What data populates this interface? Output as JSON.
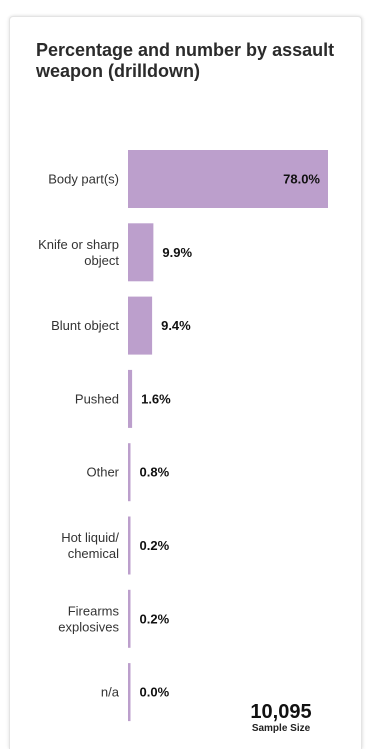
{
  "title": "Percentage and number by assault weapon (drilldown)",
  "colors": {
    "bar": "#bc9fcc",
    "label": "#333333",
    "value": "#111111"
  },
  "sample": {
    "value": "10,095",
    "label": "Sample Size"
  },
  "chart_data": {
    "type": "bar",
    "orientation": "horizontal",
    "title": "Percentage and number by assault weapon (drilldown)",
    "categories": [
      [
        "Body part(s)"
      ],
      [
        "Knife or sharp",
        "object"
      ],
      [
        "Blunt object"
      ],
      [
        "Pushed"
      ],
      [
        "Other"
      ],
      [
        "Hot liquid/",
        "chemical"
      ],
      [
        "Firearms",
        "explosives"
      ],
      [
        "n/a"
      ]
    ],
    "values": [
      78.0,
      9.9,
      9.4,
      1.6,
      0.8,
      0.2,
      0.2,
      0.0
    ],
    "value_labels": [
      "78.0%",
      "9.9%",
      "9.4%",
      "1.6%",
      "0.8%",
      "0.2%",
      "0.2%",
      "0.0%"
    ],
    "xlim": [
      0,
      78.0
    ],
    "grid": false,
    "legend": "none"
  }
}
